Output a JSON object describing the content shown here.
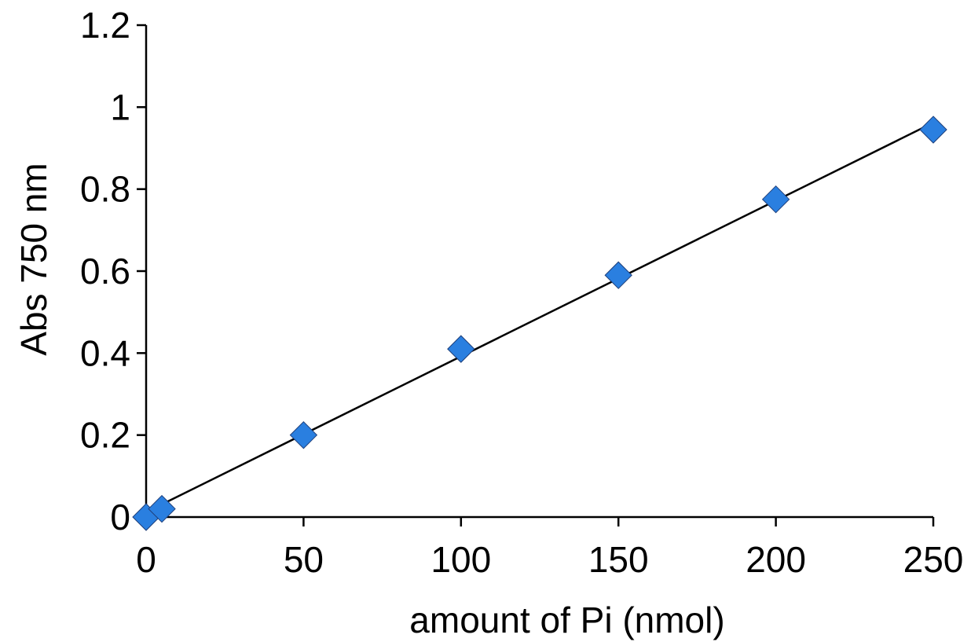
{
  "chart_data": {
    "type": "scatter",
    "title": "",
    "xlabel": "amount of Pi (nmol)",
    "ylabel": "Abs 750 nm",
    "xlim": [
      0,
      250
    ],
    "ylim": [
      0,
      1.2
    ],
    "x_ticks": [
      0,
      50,
      100,
      150,
      200,
      250
    ],
    "x_tick_labels": [
      "0",
      "50",
      "100",
      "150",
      "200",
      "250"
    ],
    "y_ticks": [
      0,
      0.2,
      0.4,
      0.6,
      0.8,
      1,
      1.2
    ],
    "y_tick_labels": [
      "0",
      "0.2",
      "0.4",
      "0.6",
      "0.8",
      "1",
      "1.2"
    ],
    "grid": false,
    "legend": "none",
    "series": [
      {
        "x": [
          0,
          5,
          50,
          100,
          150,
          200,
          250
        ],
        "y": [
          0.0,
          0.02,
          0.2,
          0.41,
          0.59,
          0.775,
          0.945
        ],
        "marker": "diamond",
        "color": "#2a7fe0"
      }
    ],
    "trendline": {
      "type": "linear",
      "x": [
        0,
        250
      ],
      "y": [
        0.012,
        0.962
      ],
      "color": "#000000"
    }
  }
}
